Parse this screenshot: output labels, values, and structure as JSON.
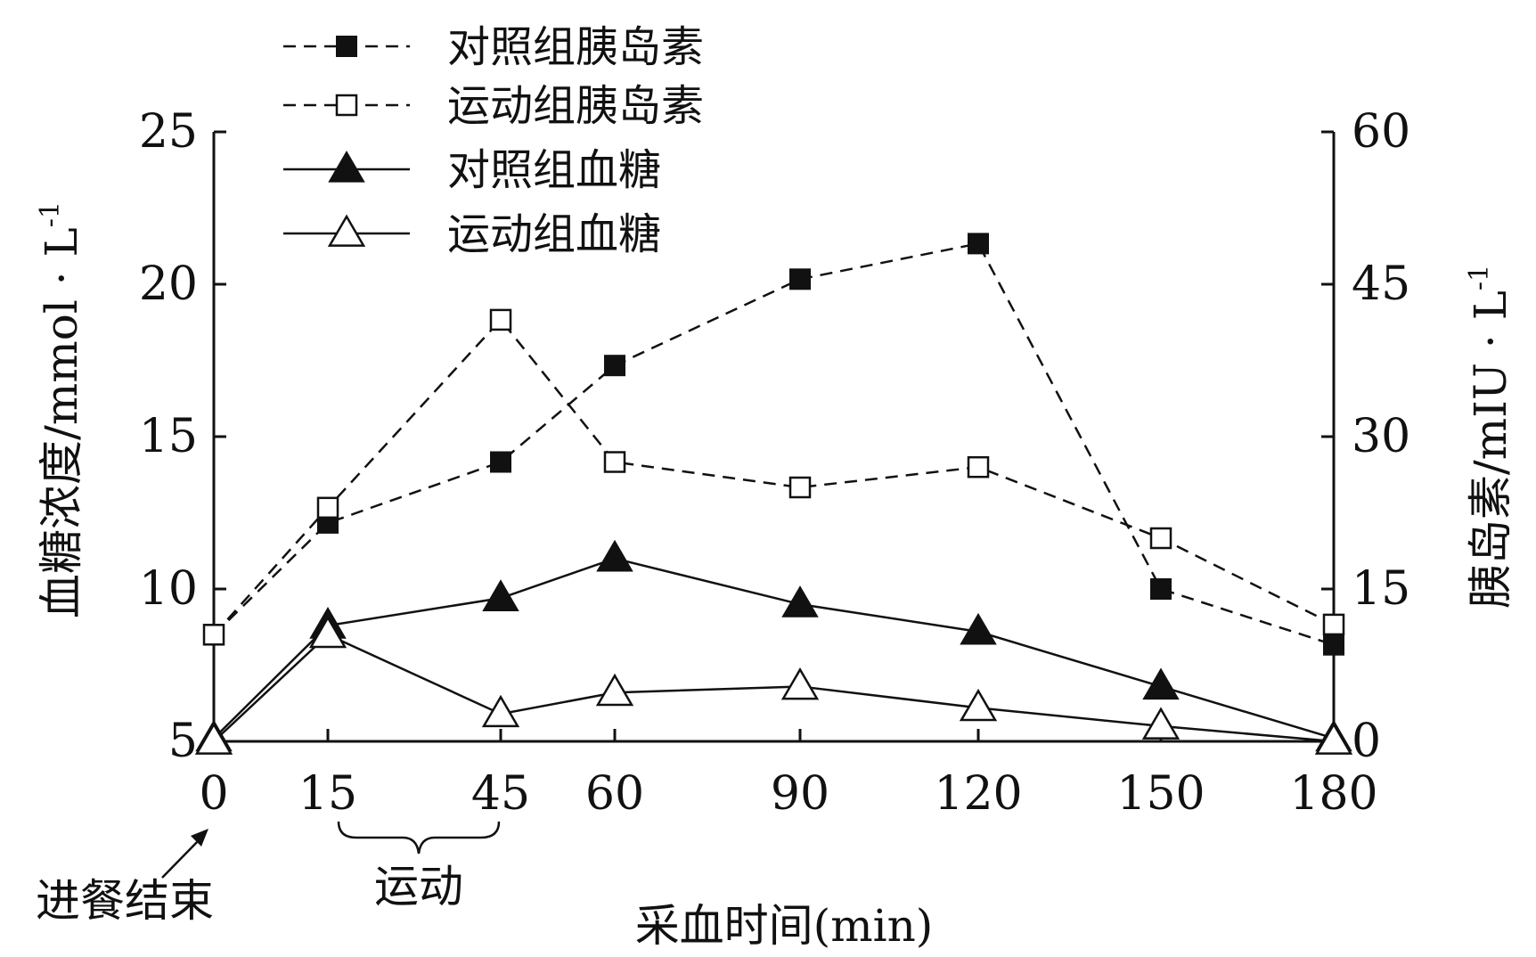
{
  "chart_data": {
    "type": "line",
    "xlabel": "采血时间(min)",
    "ylabel_left": "血糖浓度/mmol · L",
    "ylabel_left_sup": "-1",
    "ylabel_right": "胰岛素/mIU · L",
    "ylabel_right_sup": "-1",
    "x": [
      0,
      15,
      45,
      60,
      90,
      120,
      150,
      180
    ],
    "x_tick_labels": [
      "0",
      "15",
      "45",
      "60",
      "90",
      "120",
      "150",
      "180"
    ],
    "y_left_ticks": [
      "5",
      "10",
      "15",
      "20",
      "25"
    ],
    "y_left_lim": [
      5,
      25
    ],
    "y_right_ticks": [
      "0",
      "15",
      "30",
      "45",
      "60"
    ],
    "y_right_lim": [
      0,
      60
    ],
    "legend_position": "top-left",
    "series": [
      {
        "name": "对照组胰岛素",
        "axis": "right",
        "line": "dashed",
        "marker": "square-filled",
        "values": [
          10.5,
          21.5,
          27.5,
          37,
          45.5,
          49,
          15,
          9.5
        ]
      },
      {
        "name": "运动组胰岛素",
        "axis": "right",
        "line": "dashed",
        "marker": "square-open",
        "values": [
          10.5,
          23,
          41.5,
          27.5,
          25,
          27,
          20,
          11.5
        ]
      },
      {
        "name": "对照组血糖",
        "axis": "left",
        "line": "solid",
        "marker": "triangle-filled",
        "values": [
          5.1,
          8.8,
          9.7,
          11.0,
          9.5,
          8.6,
          6.8,
          5.1
        ]
      },
      {
        "name": "运动组血糖",
        "axis": "left",
        "line": "solid",
        "marker": "triangle-open",
        "values": [
          5.0,
          8.5,
          5.9,
          6.6,
          6.8,
          6.1,
          5.5,
          5.0
        ]
      }
    ],
    "annotations": {
      "meal_end": "进餐结束",
      "exercise": "运动"
    }
  }
}
